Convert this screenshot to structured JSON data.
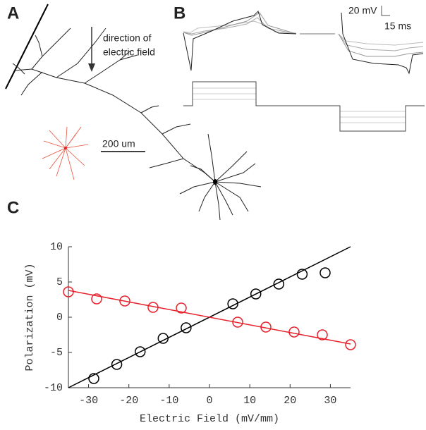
{
  "panels": {
    "a": {
      "label": "A",
      "annotation": [
        "direction of",
        "electric field"
      ],
      "scale_bar": "200 um"
    },
    "b": {
      "label": "B",
      "scale_y": "20 mV",
      "scale_x": "15 ms"
    },
    "c": {
      "label": "C"
    }
  },
  "chart_data": {
    "type": "scatter",
    "xlabel": "Electric Field (mV/mm)",
    "ylabel": "Polarization (mV)",
    "xlim": [
      -35,
      35
    ],
    "ylim": [
      -10,
      10
    ],
    "xticks": [
      -30,
      -20,
      -10,
      0,
      10,
      20,
      30
    ],
    "yticks": [
      -10,
      -5,
      0,
      5,
      10
    ],
    "marker": "open-circle",
    "series": [
      {
        "color": "#000000",
        "x": [
          -28.7,
          -23,
          -17.2,
          -11.5,
          -5.8,
          5.8,
          11.5,
          17.2,
          23,
          28.7
        ],
        "values": [
          -8.7,
          -6.7,
          -4.9,
          -3.0,
          -1.5,
          1.9,
          3.3,
          4.7,
          6.1,
          6.3
        ],
        "fit": {
          "x": [
            -35,
            35
          ],
          "values": [
            -10,
            10
          ]
        }
      },
      {
        "color": "#e8202a",
        "x": [
          -35,
          -28,
          -21,
          -14,
          -7,
          7,
          14,
          21,
          28,
          35
        ],
        "values": [
          3.6,
          2.6,
          2.3,
          1.4,
          1.3,
          -0.7,
          -1.4,
          -2.1,
          -2.5,
          -3.9
        ],
        "fit": {
          "x": [
            -35,
            35
          ],
          "values": [
            3.8,
            -3.8
          ]
        }
      }
    ]
  }
}
